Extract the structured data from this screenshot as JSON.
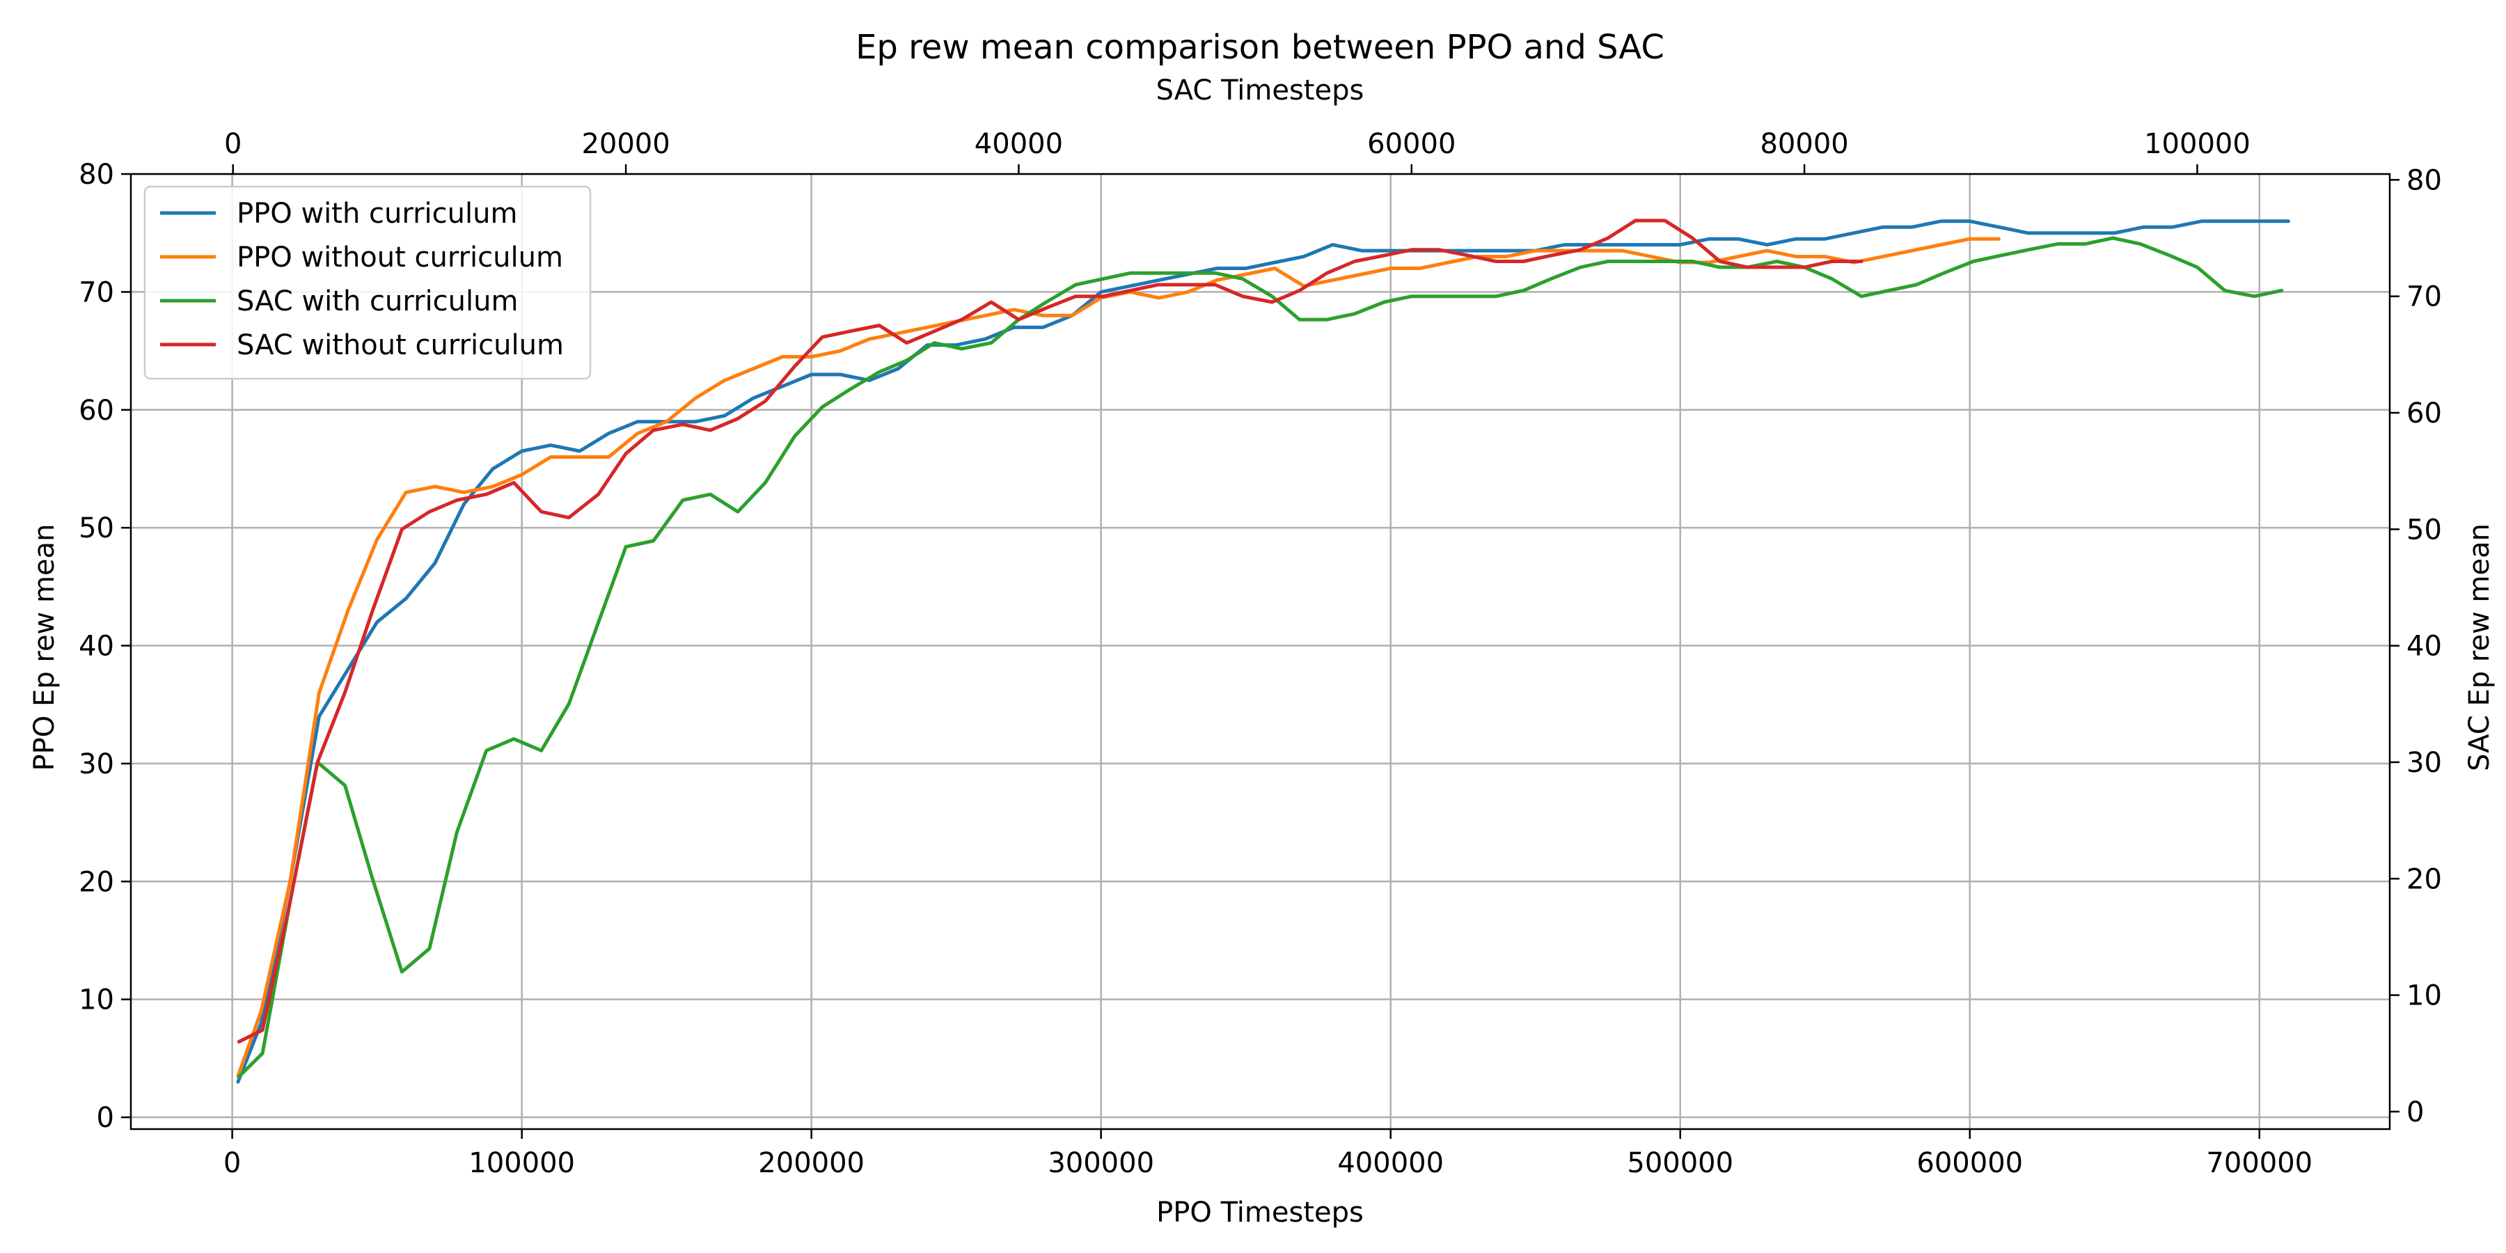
{
  "chart_data": {
    "type": "line",
    "title": "Ep rew mean comparison between PPO and SAC",
    "xlabel": "PPO Timesteps",
    "x2label": "SAC Timesteps",
    "ylabel": "PPO Ep rew mean",
    "y2label": "SAC Ep rew mean",
    "xlim": [
      -35000,
      745000
    ],
    "x2lim": [
      -5200,
      109800
    ],
    "ylim": [
      -1,
      80
    ],
    "y2lim": [
      -1.5,
      80.5
    ],
    "xticks": [
      0,
      100000,
      200000,
      300000,
      400000,
      500000,
      600000,
      700000
    ],
    "x2ticks": [
      0,
      20000,
      40000,
      60000,
      80000,
      100000
    ],
    "yticks": [
      0,
      10,
      20,
      30,
      40,
      50,
      60,
      70,
      80
    ],
    "y2ticks": [
      0,
      10,
      20,
      30,
      40,
      50,
      60,
      70,
      80
    ],
    "grid": true,
    "legend_position": "top-left",
    "series": [
      {
        "name": "PPO with curriculum",
        "axis": "ppo",
        "color": "#1f77b4",
        "x": [
          2000,
          10000,
          20000,
          30000,
          40000,
          50000,
          60000,
          70000,
          80000,
          90000,
          100000,
          110000,
          120000,
          130000,
          140000,
          150000,
          160000,
          170000,
          180000,
          190000,
          200000,
          210000,
          220000,
          230000,
          240000,
          250000,
          260000,
          270000,
          280000,
          290000,
          300000,
          310000,
          320000,
          330000,
          340000,
          350000,
          360000,
          370000,
          380000,
          390000,
          400000,
          410000,
          420000,
          430000,
          440000,
          450000,
          460000,
          470000,
          480000,
          490000,
          500000,
          510000,
          520000,
          530000,
          540000,
          550000,
          560000,
          570000,
          580000,
          590000,
          600000,
          610000,
          620000,
          630000,
          640000,
          650000,
          660000,
          670000,
          680000,
          690000,
          700000,
          710000
        ],
        "y": [
          3,
          8,
          20,
          34,
          38,
          42,
          44,
          47,
          52,
          55,
          56.5,
          57,
          56.5,
          58,
          59,
          59,
          59,
          59.5,
          61,
          62,
          63,
          63,
          62.5,
          63.5,
          65.5,
          65.5,
          66,
          67,
          67,
          68,
          70,
          70.5,
          71,
          71.5,
          72,
          72,
          72.5,
          73,
          74,
          73.5,
          73.5,
          73.5,
          73.5,
          73.5,
          73.5,
          73.5,
          74,
          74,
          74,
          74,
          74,
          74.5,
          74.5,
          74,
          74.5,
          74.5,
          75,
          75.5,
          75.5,
          76,
          76,
          75.5,
          75,
          75,
          75,
          75,
          75.5,
          75.5,
          76,
          76,
          76,
          76
        ]
      },
      {
        "name": "PPO without curriculum",
        "axis": "ppo",
        "color": "#ff7f0e",
        "x": [
          2000,
          10000,
          20000,
          30000,
          40000,
          50000,
          60000,
          70000,
          80000,
          90000,
          100000,
          110000,
          120000,
          130000,
          140000,
          150000,
          160000,
          170000,
          180000,
          190000,
          200000,
          210000,
          220000,
          230000,
          240000,
          250000,
          260000,
          270000,
          280000,
          290000,
          300000,
          310000,
          320000,
          330000,
          340000,
          350000,
          360000,
          370000,
          380000,
          390000,
          400000,
          410000,
          420000,
          430000,
          440000,
          450000,
          460000,
          470000,
          480000,
          490000,
          500000,
          510000,
          520000,
          530000,
          540000,
          550000,
          560000,
          570000,
          580000,
          590000,
          600000,
          610000
        ],
        "y": [
          3.5,
          9,
          20,
          36,
          43,
          49,
          53,
          53.5,
          53,
          53.5,
          54.5,
          56,
          56,
          56,
          58,
          59,
          61,
          62.5,
          63.5,
          64.5,
          64.5,
          65,
          66,
          66.5,
          67,
          67.5,
          68,
          68.5,
          68,
          68,
          69.5,
          70,
          69.5,
          70,
          71,
          71.5,
          72,
          70.5,
          71,
          71.5,
          72,
          72,
          72.5,
          73,
          73,
          73.5,
          73.5,
          73.5,
          73.5,
          73,
          72.5,
          72.5,
          73,
          73.5,
          73,
          73,
          72.5,
          73,
          73.5,
          74,
          74.5,
          74.5
        ]
      },
      {
        "name": "SAC with curriculum",
        "axis": "sac",
        "color": "#2ca02c",
        "x": [
          300,
          1500,
          2900,
          4300,
          5700,
          7100,
          8600,
          10000,
          11400,
          12900,
          14300,
          15700,
          17100,
          18600,
          20000,
          21400,
          22900,
          24300,
          25700,
          27100,
          28600,
          30000,
          31400,
          32900,
          34300,
          35700,
          37100,
          38600,
          40000,
          41400,
          42900,
          44300,
          45700,
          47100,
          48600,
          50000,
          51400,
          52900,
          54300,
          55700,
          57100,
          58600,
          60000,
          61400,
          62900,
          64300,
          65700,
          67100,
          68600,
          70000,
          71400,
          72900,
          74300,
          75700,
          77100,
          78600,
          80000,
          81400,
          82900,
          84300,
          85700,
          87100,
          88600,
          90000,
          91400,
          92900,
          94300,
          95700,
          97100,
          98600,
          100000,
          101400,
          102900,
          104300
        ],
        "y": [
          3,
          5,
          18,
          30,
          28,
          20,
          12,
          14,
          24,
          31,
          32,
          31,
          35,
          42,
          48.5,
          49,
          52.5,
          53,
          51.5,
          54,
          58,
          60.5,
          62,
          63.5,
          64.5,
          66,
          65.5,
          66,
          68,
          69.5,
          71,
          71.5,
          72,
          72,
          72,
          72,
          71.5,
          70,
          68,
          68,
          68.5,
          69.5,
          70,
          70,
          70,
          70,
          70.5,
          71.5,
          72.5,
          73,
          73,
          73,
          73,
          72.5,
          72.5,
          73,
          72.5,
          71.5,
          70,
          70.5,
          71,
          72,
          73,
          73.5,
          74,
          74.5,
          74.5,
          75,
          74.5,
          73.5,
          72.5,
          70.5,
          70,
          70.5
        ]
      },
      {
        "name": "SAC without curriculum",
        "axis": "sac",
        "color": "#d62728",
        "x": [
          300,
          1500,
          2900,
          4300,
          5700,
          7100,
          8600,
          10000,
          11400,
          12900,
          14300,
          15700,
          17100,
          18600,
          20000,
          21400,
          22900,
          24300,
          25700,
          27100,
          28600,
          30000,
          31400,
          32900,
          34300,
          35700,
          37100,
          38600,
          40000,
          41400,
          42900,
          44300,
          45700,
          47100,
          48600,
          50000,
          51400,
          52900,
          54300,
          55700,
          57100,
          58600,
          60000,
          61400,
          62900,
          64300,
          65700,
          67100,
          68600,
          70000,
          71400,
          72900,
          74300,
          75700,
          77100,
          78600,
          80000,
          81400,
          82900
        ],
        "y": [
          6,
          7,
          18,
          30,
          36,
          43,
          50,
          51.5,
          52.5,
          53,
          54,
          51.5,
          51,
          53,
          56.5,
          58.5,
          59,
          58.5,
          59.5,
          61,
          64,
          66.5,
          67,
          67.5,
          66,
          67,
          68,
          69.5,
          68,
          69,
          70,
          70,
          70.5,
          71,
          71,
          71,
          70,
          69.5,
          70.5,
          72,
          73,
          73.5,
          74,
          74,
          73.5,
          73,
          73,
          73.5,
          74,
          75,
          76.5,
          76.5,
          75,
          73,
          72.5,
          72.5,
          72.5,
          73,
          73
        ]
      }
    ]
  }
}
